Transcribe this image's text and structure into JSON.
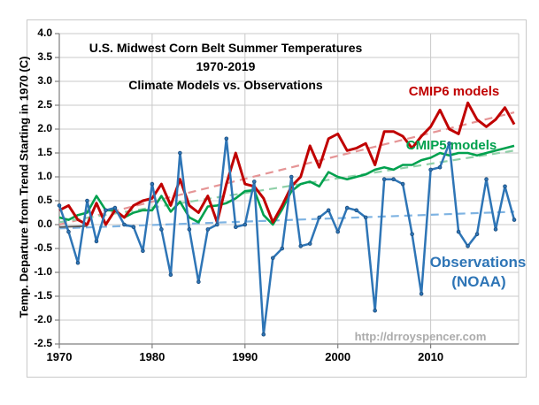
{
  "figure": {
    "title_lines": [
      "U.S. Midwest Corn Belt Summer Temperatures",
      "1970-2019",
      "Climate Models vs. Observations"
    ],
    "watermark": "http://drroyspencer.com",
    "watermark_color": "#ababab"
  },
  "chart_data": {
    "type": "line",
    "title": "U.S. Midwest Corn Belt Summer Temperatures 1970-2019 Climate Models vs. Observations",
    "xlabel": "",
    "ylabel": "Temp. Departure from Trend Starting in 1970 (C)",
    "ylim": [
      -2.5,
      4.0
    ],
    "ytick_step": 0.5,
    "xticks": [
      1970,
      1980,
      1990,
      2000,
      2010
    ],
    "grid": true,
    "legend_position": "inline-annotations",
    "x": [
      1970,
      1971,
      1972,
      1973,
      1974,
      1975,
      1976,
      1977,
      1978,
      1979,
      1980,
      1981,
      1982,
      1983,
      1984,
      1985,
      1986,
      1987,
      1988,
      1989,
      1990,
      1991,
      1992,
      1993,
      1994,
      1995,
      1996,
      1997,
      1998,
      1999,
      2000,
      2001,
      2002,
      2003,
      2004,
      2005,
      2006,
      2007,
      2008,
      2009,
      2010,
      2011,
      2012,
      2013,
      2014,
      2015,
      2016,
      2017,
      2018,
      2019
    ],
    "series": [
      {
        "name": "CMIP5 models",
        "color": "#00a14e",
        "style": "solid",
        "line_width": 2.6,
        "markers": false,
        "values": [
          0.15,
          0.1,
          0.2,
          0.25,
          0.6,
          0.3,
          0.3,
          0.15,
          0.25,
          0.3,
          0.3,
          0.6,
          0.27,
          0.48,
          0.15,
          0.05,
          0.38,
          0.4,
          0.45,
          0.55,
          0.7,
          0.72,
          0.2,
          0.0,
          0.32,
          0.7,
          0.85,
          0.9,
          0.8,
          1.1,
          1.0,
          0.95,
          1.0,
          1.05,
          1.15,
          1.2,
          1.15,
          1.25,
          1.25,
          1.35,
          1.4,
          1.5,
          1.45,
          1.5,
          1.5,
          1.45,
          1.5,
          1.55,
          1.6,
          1.65
        ]
      },
      {
        "name": "CMIP6 models",
        "color": "#c00000",
        "style": "solid",
        "line_width": 3,
        "markers": false,
        "values": [
          0.3,
          0.4,
          0.1,
          0.0,
          0.45,
          0.0,
          0.3,
          0.15,
          0.4,
          0.5,
          0.55,
          0.85,
          0.4,
          0.95,
          0.4,
          0.25,
          0.6,
          0.05,
          0.85,
          1.5,
          0.85,
          0.8,
          0.55,
          0.05,
          0.4,
          0.8,
          1.0,
          1.65,
          1.2,
          1.8,
          1.9,
          1.55,
          1.6,
          1.7,
          1.25,
          1.95,
          1.95,
          1.85,
          1.6,
          1.85,
          2.05,
          2.4,
          2.0,
          1.9,
          2.55,
          2.2,
          2.05,
          2.2,
          2.45,
          2.1
        ]
      },
      {
        "name": "Observations (NOAA)",
        "color": "#2e75b6",
        "style": "solid",
        "line_width": 2.5,
        "markers": true,
        "marker_stroke": "#1c4c7c",
        "values": [
          0.4,
          -0.15,
          -0.8,
          0.5,
          -0.35,
          0.3,
          0.35,
          0.0,
          -0.05,
          -0.55,
          0.85,
          -0.1,
          -1.05,
          1.5,
          -0.1,
          -1.2,
          -0.1,
          0.0,
          1.8,
          -0.05,
          0.0,
          0.9,
          -2.3,
          -0.7,
          -0.5,
          1.0,
          -0.45,
          -0.4,
          0.15,
          0.3,
          -0.15,
          0.35,
          0.3,
          0.15,
          -1.8,
          0.95,
          0.95,
          0.85,
          -0.2,
          -1.45,
          1.15,
          1.2,
          1.7,
          -0.15,
          -0.45,
          -0.2,
          0.95,
          -0.1,
          0.8,
          0.1
        ]
      }
    ],
    "trend_lines": [
      {
        "name": "CMIP6 linear trend",
        "color": "#e59596",
        "start_value": 0.0,
        "end_value": 2.35
      },
      {
        "name": "CMIP5 linear trend",
        "color": "#8fd0a8",
        "start_value": 0.05,
        "end_value": 1.55
      },
      {
        "name": "Observations linear trend",
        "color": "#7eb3e2",
        "start_value": -0.08,
        "end_value": 0.27
      }
    ],
    "trend_origin_segment": {
      "color": "#595959",
      "from_year": 1970,
      "from_value": -0.05,
      "to_year": 1973,
      "to_value": -0.03
    },
    "annotations": [
      {
        "id": "cmip6-label",
        "text": "CMIP6 models",
        "color": "#c00000"
      },
      {
        "id": "cmip5-label",
        "text": "CMIP5 models",
        "color": "#00a14e"
      },
      {
        "id": "obs-label-1",
        "text": "Observations",
        "color": "#2e75b6"
      },
      {
        "id": "obs-label-2",
        "text": "(NOAA)",
        "color": "#2e75b6"
      }
    ],
    "colors": {
      "gridline": "#c9c9c9",
      "axis": "#7f7f7f",
      "outer_border": "#c9c9c9"
    }
  }
}
